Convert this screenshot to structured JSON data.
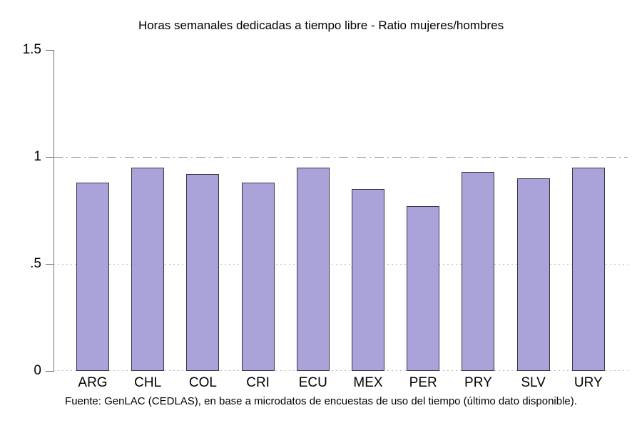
{
  "chart_data": {
    "type": "bar",
    "title": "Horas semanales dedicadas a tiempo libre - Ratio mujeres/hombres",
    "categories": [
      "ARG",
      "CHL",
      "COL",
      "CRI",
      "ECU",
      "MEX",
      "PER",
      "PRY",
      "SLV",
      "URY"
    ],
    "values": [
      0.88,
      0.95,
      0.92,
      0.88,
      0.95,
      0.85,
      0.77,
      0.93,
      0.9,
      0.95
    ],
    "xlabel": "",
    "ylabel": "",
    "ylim": [
      0,
      1.5
    ],
    "yticks": [
      {
        "value": 0,
        "label": "0"
      },
      {
        "value": 0.5,
        "label": ".5"
      },
      {
        "value": 1,
        "label": "1"
      },
      {
        "value": 1.5,
        "label": "1.5"
      }
    ],
    "reference_lines": [
      {
        "value": 1,
        "style": "dash-dot",
        "color": "#999999"
      },
      {
        "value": 0.5,
        "style": "dotted",
        "color": "#bbbbbb"
      },
      {
        "value": 0,
        "style": "dotted",
        "color": "#bbbbbb"
      }
    ],
    "grid": "horizontal-reference-lines-only",
    "legend": "none",
    "bar_fill": "#aaa3d9",
    "bar_border": "#35354a",
    "axis_color": "#707070",
    "source_note": "Fuente: GenLAC (CEDLAS), en base a microdatos de encuestas de uso del tiempo (último dato disponible)."
  }
}
